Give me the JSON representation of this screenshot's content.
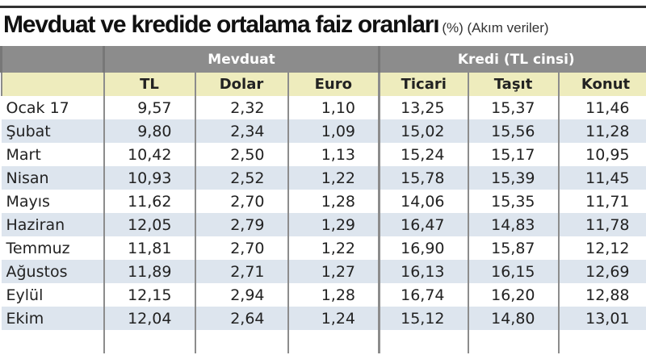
{
  "title": "Mevduat ve kredide ortalama faiz oranları",
  "subtitle": "(%) (Akım veriler)",
  "chart_data": {
    "type": "table",
    "title": "Mevduat ve kredide ortalama faiz oranları",
    "subtitle": "(%) (Akım veriler)",
    "groups": [
      {
        "label": "Mevduat",
        "columns": [
          "TL",
          "Dolar",
          "Euro"
        ]
      },
      {
        "label": "Kredi (TL cinsi)",
        "columns": [
          "Ticari",
          "Taşıt",
          "Konut"
        ]
      }
    ],
    "columns": [
      "TL",
      "Dolar",
      "Euro",
      "Ticari",
      "Taşıt",
      "Konut"
    ],
    "rows": [
      {
        "month": "Ocak 17",
        "values": [
          "9,57",
          "2,32",
          "1,10",
          "13,25",
          "15,37",
          "11,46"
        ]
      },
      {
        "month": "Şubat",
        "values": [
          "9,80",
          "2,34",
          "1,09",
          "15,02",
          "15,56",
          "11,28"
        ]
      },
      {
        "month": "Mart",
        "values": [
          "10,42",
          "2,50",
          "1,13",
          "15,24",
          "15,17",
          "10,95"
        ]
      },
      {
        "month": "Nisan",
        "values": [
          "10,93",
          "2,52",
          "1,22",
          "15,78",
          "15,39",
          "11,45"
        ]
      },
      {
        "month": "Mayıs",
        "values": [
          "11,62",
          "2,70",
          "1,28",
          "14,06",
          "15,35",
          "11,71"
        ]
      },
      {
        "month": "Haziran",
        "values": [
          "12,05",
          "2,79",
          "1,29",
          "16,47",
          "14,83",
          "11,78"
        ]
      },
      {
        "month": "Temmuz",
        "values": [
          "11,81",
          "2,70",
          "1,22",
          "16,90",
          "15,87",
          "12,12"
        ]
      },
      {
        "month": "Ağustos",
        "values": [
          "11,89",
          "2,71",
          "1,27",
          "16,13",
          "16,15",
          "12,69"
        ]
      },
      {
        "month": "Eylül",
        "values": [
          "12,15",
          "2,94",
          "1,28",
          "16,74",
          "16,20",
          "12,88"
        ]
      },
      {
        "month": "Ekim",
        "values": [
          "12,04",
          "2,64",
          "1,24",
          "15,12",
          "14,80",
          "13,01"
        ]
      }
    ],
    "colors": {
      "group_header": "#8c8c8c",
      "column_header": "#eeecbd",
      "stripe": "#dde5ee"
    }
  }
}
